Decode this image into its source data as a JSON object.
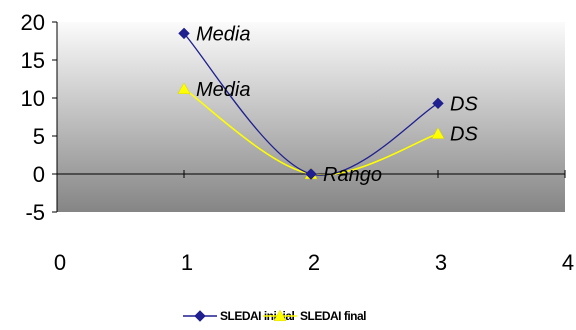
{
  "chart_data": {
    "type": "scatter",
    "title": "",
    "xlabel": "",
    "ylabel": "",
    "xlim": [
      0,
      4
    ],
    "ylim": [
      -5,
      20
    ],
    "xticks": [
      "0",
      "1",
      "2",
      "3",
      "4"
    ],
    "yticks": [
      "-5",
      "0",
      "5",
      "10",
      "15",
      "20"
    ],
    "grid": false,
    "smooth_lines": true,
    "legend_position": "bottom",
    "series": [
      {
        "name": "SLEDAI inicial",
        "color": "#1f1f8f",
        "marker": "diamond",
        "x": [
          1,
          2,
          3
        ],
        "y": [
          18.5,
          0,
          9.3
        ],
        "labels": [
          "Media",
          "Rango",
          "DS"
        ]
      },
      {
        "name": "SLEDAI final",
        "color": "#ffff00",
        "marker": "triangle",
        "x": [
          1,
          2,
          3
        ],
        "y": [
          11.2,
          0,
          5.3
        ],
        "labels": [
          "Media",
          "",
          "DS"
        ]
      }
    ]
  }
}
